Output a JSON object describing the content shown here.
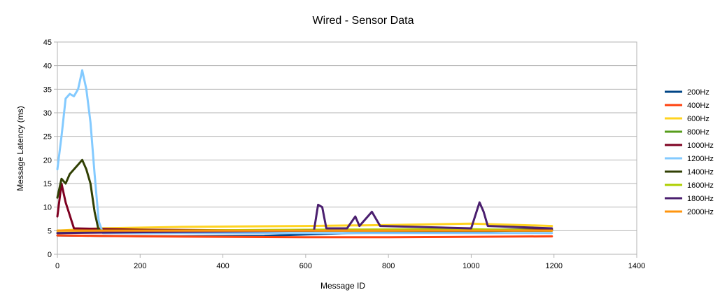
{
  "chart_data": {
    "type": "line",
    "title": "Wired - Sensor Data",
    "xlabel": "Message ID",
    "ylabel": "Message Latency (ms)",
    "xlim": [
      0,
      1400
    ],
    "ylim": [
      0,
      45
    ],
    "x_ticks": [
      0,
      200,
      400,
      600,
      800,
      1000,
      1200,
      1400
    ],
    "y_ticks": [
      0,
      5,
      10,
      15,
      20,
      25,
      30,
      35,
      40,
      45
    ],
    "x_tick_labels": [
      "0",
      "200",
      "400",
      "600",
      "800",
      "1000",
      "1200",
      "1400"
    ],
    "y_tick_labels": [
      "0",
      "5",
      "10",
      "15",
      "20",
      "25",
      "30",
      "35",
      "40",
      "45"
    ],
    "grid": "horizontal",
    "legend_position": "right",
    "series": [
      {
        "name": "200Hz",
        "color": "#004586",
        "points": [
          [
            0,
            4
          ],
          [
            100,
            3.9
          ],
          [
            300,
            3.8
          ],
          [
            500,
            3.9
          ],
          [
            700,
            4.5
          ],
          [
            900,
            4.6
          ],
          [
            1100,
            5
          ],
          [
            1195,
            5
          ]
        ]
      },
      {
        "name": "400Hz",
        "color": "#ff420e",
        "points": [
          [
            0,
            4
          ],
          [
            200,
            3.8
          ],
          [
            400,
            3.7
          ],
          [
            600,
            3.6
          ],
          [
            800,
            3.6
          ],
          [
            1000,
            3.7
          ],
          [
            1195,
            3.8
          ]
        ]
      },
      {
        "name": "600Hz",
        "color": "#ffd320",
        "points": [
          [
            0,
            5
          ],
          [
            100,
            5.5
          ],
          [
            300,
            5.8
          ],
          [
            600,
            6
          ],
          [
            800,
            6.2
          ],
          [
            1000,
            6.5
          ],
          [
            1195,
            6
          ]
        ]
      },
      {
        "name": "800Hz",
        "color": "#579d1c",
        "points": [
          [
            0,
            4.5
          ],
          [
            200,
            4.8
          ],
          [
            500,
            5
          ],
          [
            800,
            5.1
          ],
          [
            1195,
            5.3
          ]
        ]
      },
      {
        "name": "1000Hz",
        "color": "#7e0021",
        "points": [
          [
            0,
            8
          ],
          [
            10,
            15
          ],
          [
            20,
            11
          ],
          [
            40,
            5.5
          ],
          [
            200,
            5.2
          ],
          [
            600,
            5
          ],
          [
            1195,
            5.2
          ]
        ]
      },
      {
        "name": "1200Hz",
        "color": "#83caff",
        "points": [
          [
            0,
            18
          ],
          [
            10,
            25
          ],
          [
            20,
            33
          ],
          [
            30,
            34
          ],
          [
            40,
            33.5
          ],
          [
            50,
            35
          ],
          [
            60,
            39
          ],
          [
            70,
            35
          ],
          [
            80,
            28
          ],
          [
            90,
            17
          ],
          [
            100,
            7
          ],
          [
            110,
            4.5
          ],
          [
            1195,
            4.5
          ]
        ]
      },
      {
        "name": "1400Hz",
        "color": "#314004",
        "points": [
          [
            0,
            12
          ],
          [
            10,
            16
          ],
          [
            20,
            15
          ],
          [
            30,
            17
          ],
          [
            40,
            18
          ],
          [
            50,
            19
          ],
          [
            60,
            20
          ],
          [
            70,
            18
          ],
          [
            80,
            15
          ],
          [
            90,
            9
          ],
          [
            100,
            5
          ],
          [
            1195,
            5
          ]
        ]
      },
      {
        "name": "1600Hz",
        "color": "#aecf00",
        "points": [
          [
            0,
            5
          ],
          [
            200,
            5
          ],
          [
            600,
            5.2
          ],
          [
            1000,
            5.3
          ],
          [
            1195,
            5
          ]
        ]
      },
      {
        "name": "1800Hz",
        "color": "#4b1f6f",
        "points": [
          [
            0,
            4.5
          ],
          [
            600,
            5
          ],
          [
            620,
            5
          ],
          [
            630,
            10.5
          ],
          [
            640,
            10
          ],
          [
            650,
            5.5
          ],
          [
            700,
            5.5
          ],
          [
            720,
            8
          ],
          [
            730,
            6
          ],
          [
            760,
            9
          ],
          [
            780,
            6
          ],
          [
            1000,
            5.5
          ],
          [
            1020,
            11
          ],
          [
            1030,
            9
          ],
          [
            1040,
            6
          ],
          [
            1195,
            5.5
          ]
        ]
      },
      {
        "name": "2000Hz",
        "color": "#ff950e",
        "points": [
          [
            0,
            5
          ],
          [
            300,
            5
          ],
          [
            700,
            5
          ],
          [
            1195,
            5
          ]
        ]
      }
    ]
  }
}
